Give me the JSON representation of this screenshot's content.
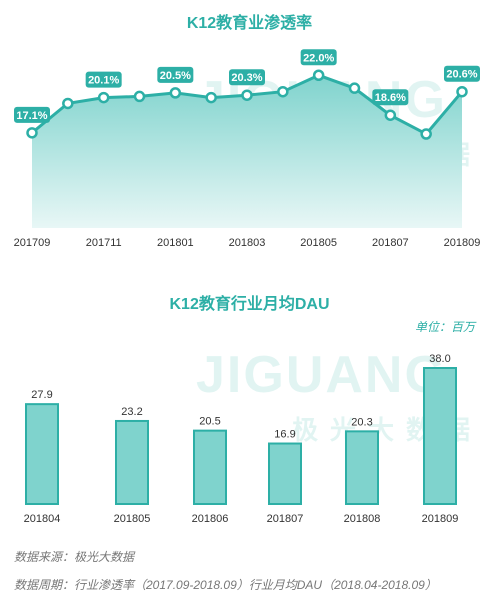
{
  "chart_data": [
    {
      "type": "area",
      "title": "K12教育业渗透率",
      "x": [
        "201709",
        "201710",
        "201711",
        "201712",
        "201801",
        "201802",
        "201803",
        "201804",
        "201805",
        "201806",
        "201807",
        "201808",
        "201809"
      ],
      "tick_labels": [
        "201709",
        "201711",
        "201801",
        "201803",
        "201805",
        "201807",
        "201809"
      ],
      "values": [
        17.1,
        19.6,
        20.1,
        20.2,
        20.5,
        20.1,
        20.3,
        20.6,
        22.0,
        20.9,
        18.6,
        17.0,
        20.6
      ],
      "data_labels": [
        {
          "x": "201709",
          "text": "17.1%"
        },
        {
          "x": "201711",
          "text": "20.1%"
        },
        {
          "x": "201801",
          "text": "20.5%"
        },
        {
          "x": "201803",
          "text": "20.3%"
        },
        {
          "x": "201805",
          "text": "22.0%"
        },
        {
          "x": "201807",
          "text": "18.6%"
        },
        {
          "x": "201809",
          "text": "20.6%"
        }
      ],
      "ylim": [
        9,
        25
      ],
      "grid": false,
      "colors": {
        "line": "#2dafa6",
        "fill_top": "#7fd3cd",
        "fill_bottom": "#e8f7f6",
        "label_bg": "#2dafa6"
      }
    },
    {
      "type": "bar",
      "title": "K12教育行业月均DAU",
      "unit": "单位：百万",
      "categories": [
        "201804",
        "201805",
        "201806",
        "201807",
        "201808",
        "201809"
      ],
      "values": [
        27.9,
        23.2,
        20.5,
        16.9,
        20.3,
        38.0
      ],
      "value_labels": [
        "27.9",
        "23.2",
        "20.5",
        "16.9",
        "20.3",
        "38.0"
      ],
      "ylim": [
        0,
        40
      ],
      "grid": false,
      "colors": {
        "bar_fill": "#7fd3cd",
        "bar_stroke": "#2dafa6"
      }
    }
  ],
  "watermark": {
    "en": "JIGUANG",
    "cn": "极光大数据"
  },
  "footer": {
    "source": "数据来源：极光大数据",
    "period": "数据周期：行业渗透率（2017.09-2018.09）行业月均DAU（2018.04-2018.09）"
  }
}
